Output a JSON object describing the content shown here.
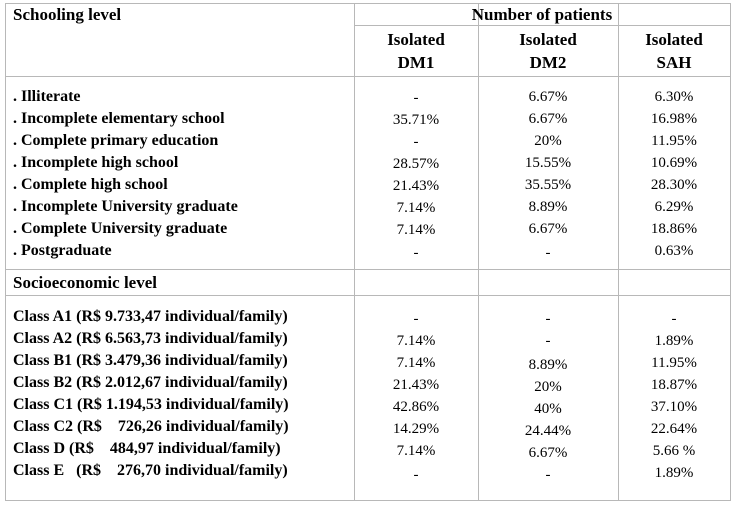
{
  "header": {
    "schooling_title": "Schooling level",
    "patients_title": "Number of patients",
    "columns": [
      {
        "line1": "Isolated",
        "line2": "DM1"
      },
      {
        "line1": "Isolated",
        "line2": "DM2"
      },
      {
        "line1": "Isolated",
        "line2": "SAH"
      }
    ]
  },
  "schooling_rows": [
    {
      "label": ". Illiterate",
      "dm1": "-",
      "dm2": "6.67%",
      "sah": "6.30%"
    },
    {
      "label": ". Incomplete elementary school",
      "dm1": "35.71%",
      "dm2": "6.67%",
      "sah": "16.98%"
    },
    {
      "label": ". Complete primary education",
      "dm1": "-",
      "dm2": "20%",
      "sah": "11.95%"
    },
    {
      "label": ". Incomplete high school",
      "dm1": "28.57%",
      "dm2": "15.55%",
      "sah": "10.69%"
    },
    {
      "label": ". Complete high school",
      "dm1": "21.43%",
      "dm2": "35.55%",
      "sah": "28.30%"
    },
    {
      "label": ". Incomplete University graduate",
      "dm1": "7.14%",
      "dm2": "8.89%",
      "sah": "6.29%"
    },
    {
      "label": ". Complete University graduate",
      "dm1": "7.14%",
      "dm2": "6.67%",
      "sah": "18.86%"
    },
    {
      "label": ". Postgraduate",
      "dm1": "-",
      "dm2": "-",
      "sah": "0.63%"
    }
  ],
  "socio_title": "Socioeconomic level",
  "socio_rows": [
    {
      "label": "Class A1 (R$ 9.733,47 individual/family)",
      "dm1": "-",
      "dm2": "-",
      "sah": "-"
    },
    {
      "label": "Class A2 (R$ 6.563,73 individual/family)",
      "dm1": "7.14%",
      "dm2": "-",
      "sah": "1.89%"
    },
    {
      "label": "Class B1 (R$ 3.479,36 individual/family)",
      "dm1": "7.14%",
      "dm2": "8.89%",
      "sah": "11.95%"
    },
    {
      "label": "Class B2 (R$ 2.012,67 individual/family)",
      "dm1": "21.43%",
      "dm2": "20%",
      "sah": "18.87%"
    },
    {
      "label": "Class C1 (R$ 1.194,53 individual/family)",
      "dm1": "42.86%",
      "dm2": "40%",
      "sah": "37.10%"
    },
    {
      "label": "Class C2 (R$    726,26 individual/family)",
      "dm1": "14.29%",
      "dm2": "24.44%",
      "sah": "22.64%"
    },
    {
      "label": "Class D (R$    484,97 individual/family)",
      "dm1": "7.14%",
      "dm2": "6.67%",
      "sah": "5.66 %"
    },
    {
      "label": "Class E   (R$    276,70 individual/family)",
      "dm1": "-",
      "dm2": "-",
      "sah": "1.89%"
    }
  ]
}
